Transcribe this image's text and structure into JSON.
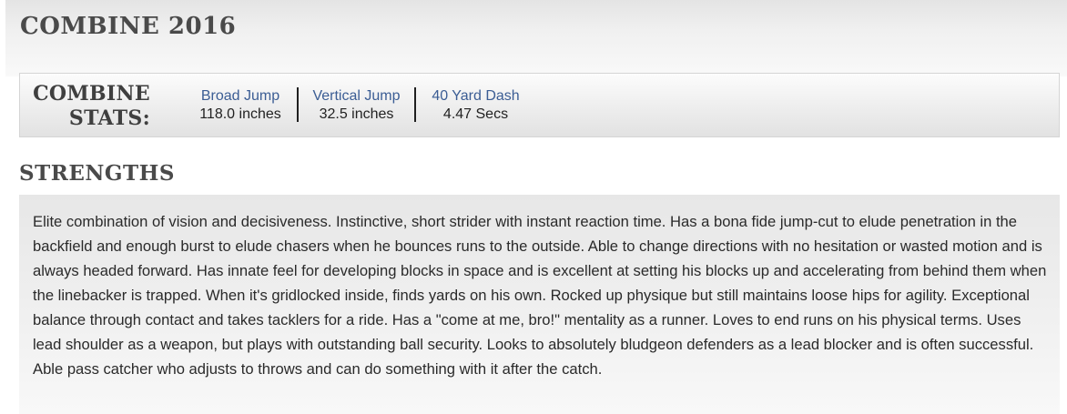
{
  "combine": {
    "title": "COMBINE 2016",
    "stats_label_line1": "COMBINE",
    "stats_label_line2": "STATS:",
    "stats": [
      {
        "name": "Broad Jump",
        "value": "118.0 inches"
      },
      {
        "name": "Vertical Jump",
        "value": "32.5 inches"
      },
      {
        "name": "40 Yard Dash",
        "value": "4.47 Secs"
      }
    ]
  },
  "strengths": {
    "title": "STRENGTHS",
    "text": "Elite combination of vision and decisiveness. Instinctive, short strider with instant reaction time. Has a bona fide jump-cut to elude penetration in the backfield and enough burst to elude chasers when he bounces runs to the outside. Able to change directions with no hesitation or wasted motion and is always headed forward. Has innate feel for developing blocks in space and is excellent at setting his blocks up and accelerating from behind them when the linebacker is trapped. When it's gridlocked inside, finds yards on his own. Rocked up physique but still maintains loose hips for agility. Exceptional balance through contact and takes tacklers for a ride. Has a \"come at me, bro!\" mentality as a runner. Loves to end runs on his physical terms. Uses lead shoulder as a weapon, but plays with outstanding ball security. Looks to absolutely bludgeon defenders as a lead blocker and is often successful. Able pass catcher who adjusts to throws and can do something with it after the catch."
  }
}
